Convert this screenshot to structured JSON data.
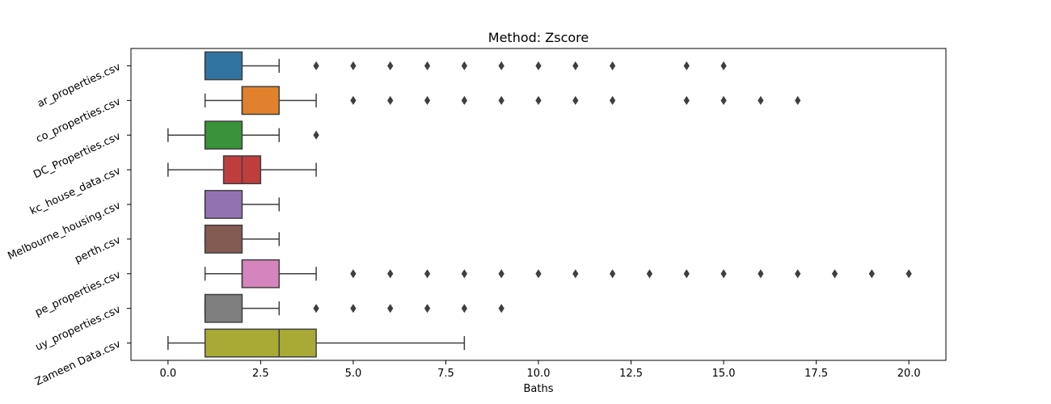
{
  "chart_data": {
    "type": "boxplot",
    "orientation": "horizontal",
    "title": "Method: Zscore",
    "xlabel": "Baths",
    "ylabel": "",
    "xlim": [
      -1,
      21
    ],
    "xticks": [
      0,
      2.5,
      5,
      7.5,
      10,
      12.5,
      15,
      17.5,
      20
    ],
    "xtick_labels": [
      "0.0",
      "2.5",
      "5.0",
      "7.5",
      "10.0",
      "12.5",
      "15.0",
      "17.5",
      "20.0"
    ],
    "grid": false,
    "categories": [
      "ar_properties.csv",
      "co_properties.csv",
      "DC_Properties.csv",
      "kc_house_data.csv",
      "Melbourne_housing.csv",
      "perth.csv",
      "pe_properties.csv",
      "uy_properties.csv",
      "Zameen Data.csv"
    ],
    "series": [
      {
        "whisker_low": 1,
        "q1": 1,
        "median": 1,
        "q3": 2,
        "whisker_high": 3,
        "outliers": [
          4,
          5,
          6,
          7,
          8,
          9,
          10,
          11,
          12,
          14,
          15
        ],
        "color": "#3274a1"
      },
      {
        "whisker_low": 1,
        "q1": 2,
        "median": 2,
        "q3": 3,
        "whisker_high": 4,
        "outliers": [
          5,
          6,
          7,
          8,
          9,
          10,
          11,
          12,
          14,
          15,
          16,
          17
        ],
        "color": "#e1812c"
      },
      {
        "whisker_low": 0,
        "q1": 1,
        "median": 1,
        "q3": 2,
        "whisker_high": 3,
        "outliers": [
          4
        ],
        "color": "#3a923a"
      },
      {
        "whisker_low": 0,
        "q1": 1.5,
        "median": 2,
        "q3": 2.5,
        "whisker_high": 4,
        "outliers": [],
        "color": "#c03d3e"
      },
      {
        "whisker_low": 1,
        "q1": 1,
        "median": 1,
        "q3": 2,
        "whisker_high": 3,
        "outliers": [],
        "color": "#9372b2"
      },
      {
        "whisker_low": 1,
        "q1": 1,
        "median": 1,
        "q3": 2,
        "whisker_high": 3,
        "outliers": [],
        "color": "#845b53"
      },
      {
        "whisker_low": 1,
        "q1": 2,
        "median": 2,
        "q3": 3,
        "whisker_high": 4,
        "outliers": [
          5,
          6,
          7,
          8,
          9,
          10,
          11,
          12,
          13,
          14,
          15,
          16,
          17,
          18,
          19,
          20
        ],
        "color": "#d684bd"
      },
      {
        "whisker_low": 1,
        "q1": 1,
        "median": 1,
        "q3": 2,
        "whisker_high": 3,
        "outliers": [
          4,
          5,
          6,
          7,
          8,
          9
        ],
        "color": "#7f7f7f"
      },
      {
        "whisker_low": 0,
        "q1": 1,
        "median": 3,
        "q3": 4,
        "whisker_high": 8,
        "outliers": [],
        "color": "#a9aa35"
      }
    ]
  }
}
